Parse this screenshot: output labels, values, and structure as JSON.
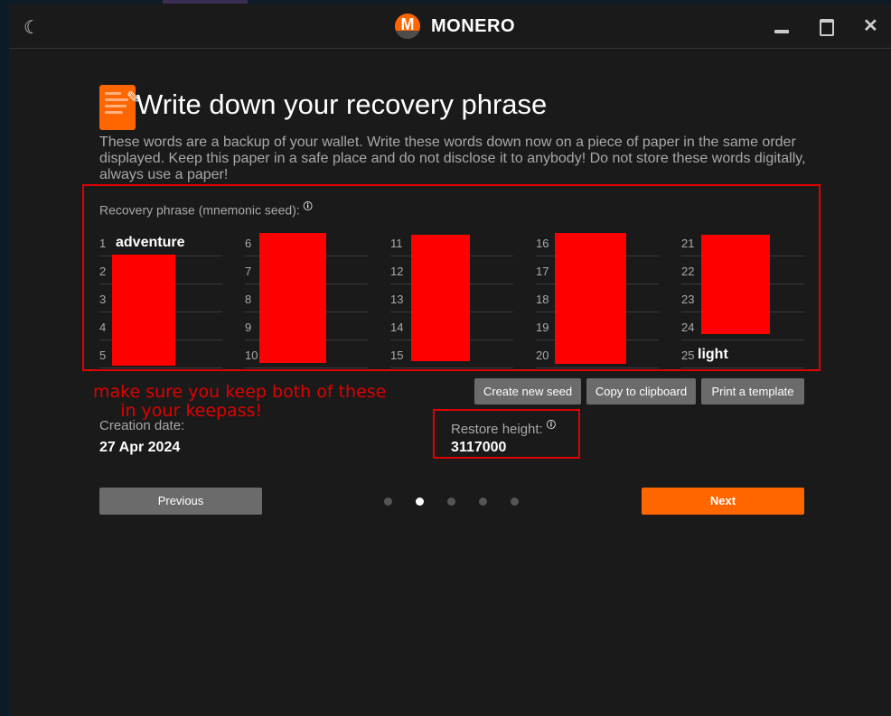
{
  "titlebar": {
    "brand": "MONERO",
    "logo_letter": "M"
  },
  "page": {
    "title": "Write down your recovery phrase",
    "description": "These words are a backup of your wallet. Write these words down now on a piece of paper in the same order displayed. Keep this paper in a safe place and do not disclose it to anybody! Do not store these words digitally, always use a paper!",
    "seed_label": "Recovery phrase (mnemonic seed):",
    "help": "?",
    "words": [
      {
        "n": "1",
        "w": "adventure"
      },
      {
        "n": "2",
        "w": ""
      },
      {
        "n": "3",
        "w": ""
      },
      {
        "n": "4",
        "w": ""
      },
      {
        "n": "5",
        "w": ""
      },
      {
        "n": "6",
        "w": ""
      },
      {
        "n": "7",
        "w": ""
      },
      {
        "n": "8",
        "w": ""
      },
      {
        "n": "9",
        "w": ""
      },
      {
        "n": "10",
        "w": ""
      },
      {
        "n": "11",
        "w": ""
      },
      {
        "n": "12",
        "w": ""
      },
      {
        "n": "13",
        "w": ""
      },
      {
        "n": "14",
        "w": ""
      },
      {
        "n": "15",
        "w": ""
      },
      {
        "n": "16",
        "w": ""
      },
      {
        "n": "17",
        "w": ""
      },
      {
        "n": "18",
        "w": ""
      },
      {
        "n": "19",
        "w": ""
      },
      {
        "n": "20",
        "w": ""
      },
      {
        "n": "21",
        "w": ""
      },
      {
        "n": "22",
        "w": ""
      },
      {
        "n": "23",
        "w": ""
      },
      {
        "n": "24",
        "w": ""
      },
      {
        "n": "25",
        "w": "light"
      }
    ],
    "buttons": {
      "create": "Create new seed",
      "copy": "Copy to clipboard",
      "print": "Print a template",
      "previous": "Previous",
      "next": "Next"
    },
    "creation_label": "Creation date:",
    "creation_value": "27 Apr 2024",
    "restore_label": "Restore height:",
    "restore_value": "3117000",
    "annotation": "make sure you keep both of these\n     in your keepass!",
    "step": {
      "current": 2,
      "total": 5
    }
  },
  "colors": {
    "accent": "#ff6600",
    "annotation": "#ff0000"
  }
}
